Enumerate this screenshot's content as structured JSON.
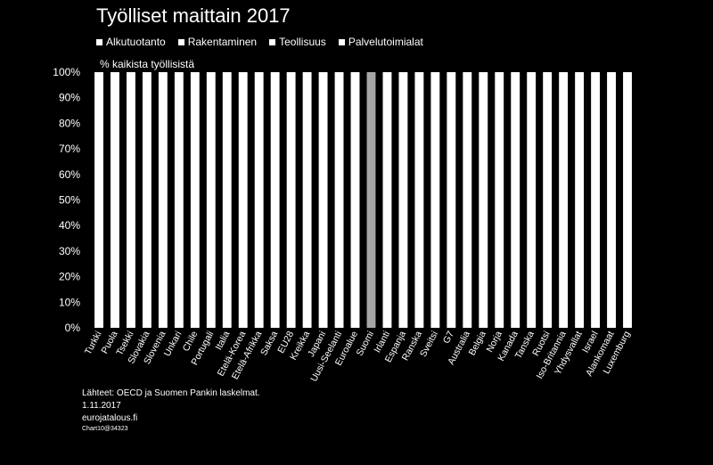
{
  "chart_data": {
    "type": "bar",
    "stacked": true,
    "title": "Työlliset maittain 2017",
    "ylabel": "% kaikista työllisistä",
    "ylim": [
      0,
      100
    ],
    "yticks": [
      "0%",
      "10%",
      "20%",
      "30%",
      "40%",
      "50%",
      "60%",
      "70%",
      "80%",
      "90%",
      "100%"
    ],
    "categories": [
      "Turkki",
      "Puola",
      "Tsekki",
      "Slovakia",
      "Slovenia",
      "Unkari",
      "Chile",
      "Portugali",
      "Italia",
      "Etelä-Korea",
      "Etelä-Afrikka",
      "Saksa",
      "EU28",
      "Kreikka",
      "Japani",
      "Uusi-Seelanti",
      "Euroalue",
      "Suomi",
      "Irlanti",
      "Espanja",
      "Ranska",
      "Sveitsi",
      "G7",
      "Australia",
      "Belgia",
      "Norja",
      "Kanada",
      "Tanska",
      "Ruotsi",
      "Iso-Britannia",
      "Yhdysvallat",
      "Israel",
      "Alankomaat",
      "Luxemburg"
    ],
    "highlight_category": "Suomi",
    "series": [
      {
        "name": "Alkutuotanto",
        "values": [
          0,
          0,
          0,
          0,
          0,
          0,
          0,
          0,
          0,
          0,
          0,
          0,
          0,
          0,
          0,
          0,
          0,
          0,
          0,
          0,
          0,
          0,
          0,
          0,
          0,
          0,
          0,
          0,
          0,
          0,
          0,
          0,
          0,
          0
        ]
      },
      {
        "name": "Rakentaminen",
        "values": [
          0,
          0,
          0,
          0,
          0,
          0,
          0,
          0,
          0,
          0,
          0,
          0,
          0,
          0,
          0,
          0,
          0,
          0,
          0,
          0,
          0,
          0,
          0,
          0,
          0,
          0,
          0,
          0,
          0,
          0,
          0,
          0,
          0,
          0
        ]
      },
      {
        "name": "Teollisuus",
        "values": [
          0,
          0,
          0,
          0,
          0,
          0,
          0,
          0,
          0,
          0,
          0,
          0,
          0,
          0,
          0,
          0,
          0,
          0,
          0,
          0,
          0,
          0,
          0,
          0,
          0,
          0,
          0,
          0,
          0,
          0,
          0,
          0,
          0,
          0
        ]
      },
      {
        "name": "Palvelutoimialat",
        "values": [
          100,
          100,
          100,
          100,
          100,
          100,
          100,
          100,
          100,
          100,
          100,
          100,
          100,
          100,
          100,
          100,
          100,
          100,
          100,
          100,
          100,
          100,
          100,
          100,
          100,
          100,
          100,
          100,
          100,
          100,
          100,
          100,
          100,
          100
        ]
      }
    ],
    "colors": {
      "background": "#000000",
      "bar": "#ffffff",
      "highlight": "#a6a6a6",
      "text": "#ffffff"
    }
  },
  "footer": {
    "source": "Lähteet: OECD ja Suomen Pankin laskelmat.",
    "date": "1.11.2017",
    "site": "eurojatalous.fi",
    "code": "Chart10@34323"
  }
}
